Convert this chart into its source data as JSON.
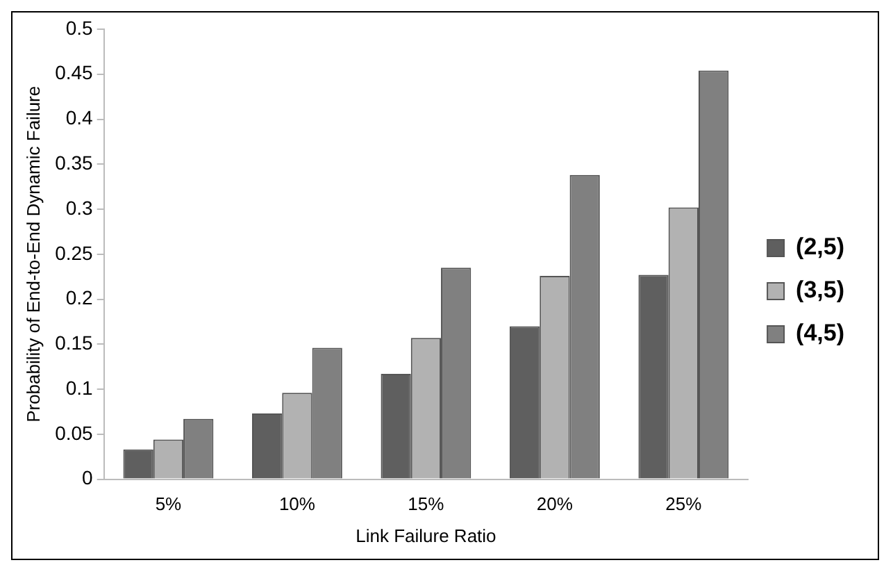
{
  "chart_data": {
    "type": "bar",
    "xlabel": "Link Failure Ratio",
    "ylabel": "Probability of End-to-End Dynamic Failure",
    "categories": [
      "5%",
      "10%",
      "15%",
      "20%",
      "25%"
    ],
    "series": [
      {
        "name": "(2,5)",
        "color": "#5f5f5f",
        "values": [
          0.033,
          0.073,
          0.117,
          0.17,
          0.227
        ]
      },
      {
        "name": "(3,5)",
        "color": "#b2b2b2",
        "values": [
          0.044,
          0.096,
          0.157,
          0.226,
          0.302
        ]
      },
      {
        "name": "(4,5)",
        "color": "#808080",
        "values": [
          0.067,
          0.146,
          0.235,
          0.338,
          0.454
        ]
      }
    ],
    "ylim": [
      0,
      0.5
    ],
    "yticks": [
      0,
      0.05,
      0.1,
      0.15,
      0.2,
      0.25,
      0.3,
      0.35,
      0.4,
      0.45,
      0.5
    ],
    "grid": false,
    "legend": "right"
  }
}
